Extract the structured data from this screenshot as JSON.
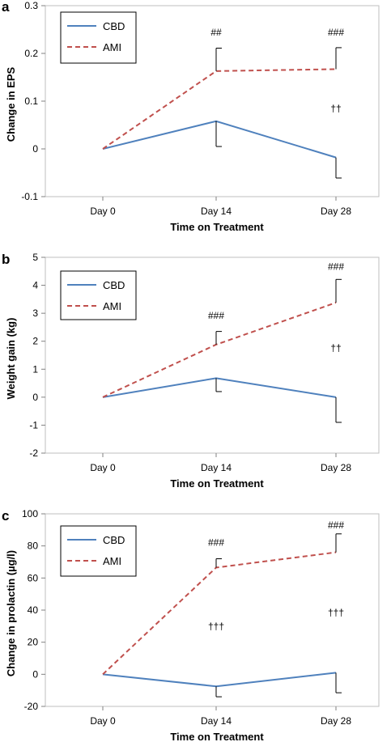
{
  "chart_data": [
    {
      "type": "line",
      "panel_label": "a",
      "categories": [
        "Day 0",
        "Day 14",
        "Day 28"
      ],
      "xlabel": "Time on Treatment",
      "ylabel": "Change in EPS",
      "ylim": [
        -0.1,
        0.3
      ],
      "yticks": [
        "-0.1",
        "0",
        "0.1",
        "0.2",
        "0.3"
      ],
      "grid": false,
      "legend_position": "top-left",
      "colors": {
        "CBD": "#4F81BD",
        "AMI": "#C0504D"
      },
      "series": [
        {
          "name": "CBD",
          "values": [
            0,
            0.058,
            -0.018
          ],
          "error": [
            0,
            0.053,
            0.043
          ],
          "error_dir": "down"
        },
        {
          "name": "AMI",
          "values": [
            0,
            0.163,
            0.167
          ],
          "error": [
            0,
            0.048,
            0.045
          ],
          "error_dir": "up"
        }
      ],
      "annotations": [
        {
          "text": "##",
          "category": "Day 14",
          "y": 0.237
        },
        {
          "text": "###",
          "category": "Day 28",
          "y": 0.237
        },
        {
          "text": "††",
          "category": "Day 28",
          "y": 0.078
        }
      ]
    },
    {
      "type": "line",
      "panel_label": "b",
      "categories": [
        "Day 0",
        "Day 14",
        "Day 28"
      ],
      "xlabel": "Time on Treatment",
      "ylabel": "Weight gain (kg)",
      "ylim": [
        -2,
        5
      ],
      "yticks": [
        "-2",
        "-1",
        "0",
        "1",
        "2",
        "3",
        "4",
        "5"
      ],
      "grid": false,
      "legend_position": "top-left",
      "colors": {
        "CBD": "#4F81BD",
        "AMI": "#C0504D"
      },
      "series": [
        {
          "name": "CBD",
          "values": [
            0,
            0.68,
            0.0
          ],
          "error": [
            0,
            0.48,
            0.9
          ],
          "error_dir": "down"
        },
        {
          "name": "AMI",
          "values": [
            0,
            1.88,
            3.38
          ],
          "error": [
            0,
            0.47,
            0.83
          ],
          "error_dir": "up"
        }
      ],
      "annotations": [
        {
          "text": "###",
          "category": "Day 14",
          "y": 2.8
        },
        {
          "text": "###",
          "category": "Day 28",
          "y": 4.55
        },
        {
          "text": "††",
          "category": "Day 28",
          "y": 1.65
        }
      ]
    },
    {
      "type": "line",
      "panel_label": "c",
      "categories": [
        "Day 0",
        "Day 14",
        "Day 28"
      ],
      "xlabel": "Time on Treatment",
      "ylabel": "Change in prolactin (µg/l)",
      "ylim": [
        -20,
        100
      ],
      "yticks": [
        "-20",
        "0",
        "20",
        "40",
        "60",
        "80",
        "100"
      ],
      "grid": false,
      "legend_position": "top-left",
      "colors": {
        "CBD": "#4F81BD",
        "AMI": "#C0504D"
      },
      "series": [
        {
          "name": "CBD",
          "values": [
            0,
            -7.5,
            1.0
          ],
          "error": [
            0,
            6.5,
            12.5
          ],
          "error_dir": "down"
        },
        {
          "name": "AMI",
          "values": [
            0,
            66.5,
            76.0
          ],
          "error": [
            0,
            5.5,
            11.5
          ],
          "error_dir": "up"
        }
      ],
      "annotations": [
        {
          "text": "###",
          "category": "Day 14",
          "y": 80
        },
        {
          "text": "###",
          "category": "Day 28",
          "y": 91
        },
        {
          "text": "†††",
          "category": "Day 14",
          "y": 28
        },
        {
          "text": "†††",
          "category": "Day 28",
          "y": 36.5
        }
      ]
    }
  ]
}
